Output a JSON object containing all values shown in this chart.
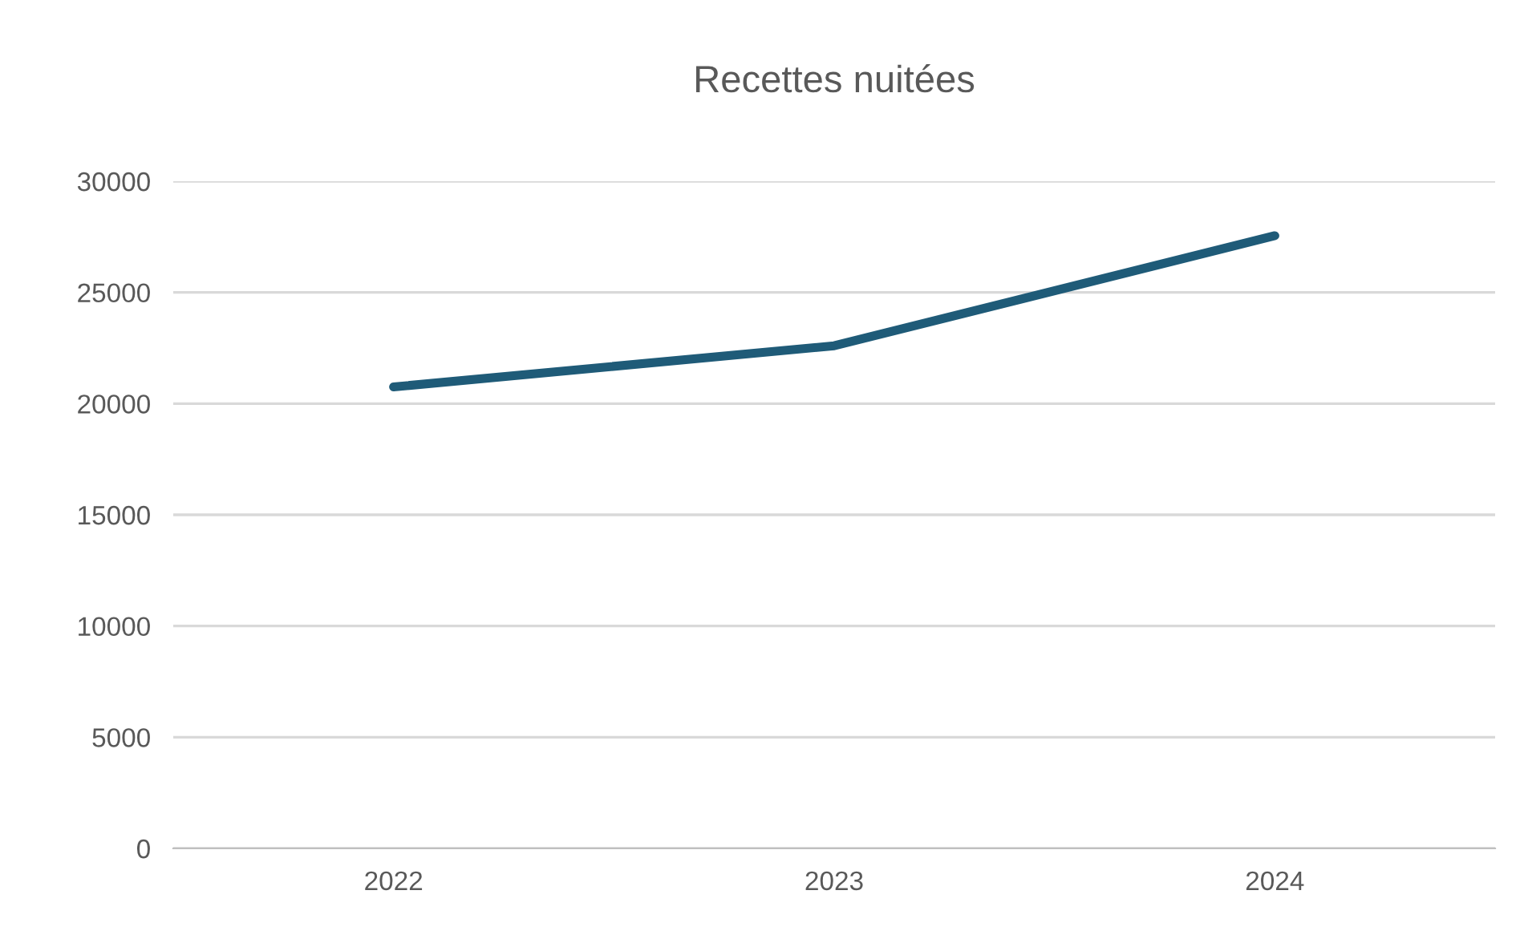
{
  "chart_data": {
    "type": "line",
    "title": "Recettes nuitées",
    "categories": [
      "2022",
      "2023",
      "2024"
    ],
    "series": [
      {
        "color": "#1f5b78",
        "values": [
          20750,
          22600,
          27550
        ]
      }
    ],
    "ylim": [
      0,
      30000
    ],
    "yticks": [
      0,
      5000,
      10000,
      15000,
      20000,
      25000,
      30000
    ],
    "grid": "y",
    "legend": false,
    "marker": "none",
    "line_style": "solid"
  }
}
